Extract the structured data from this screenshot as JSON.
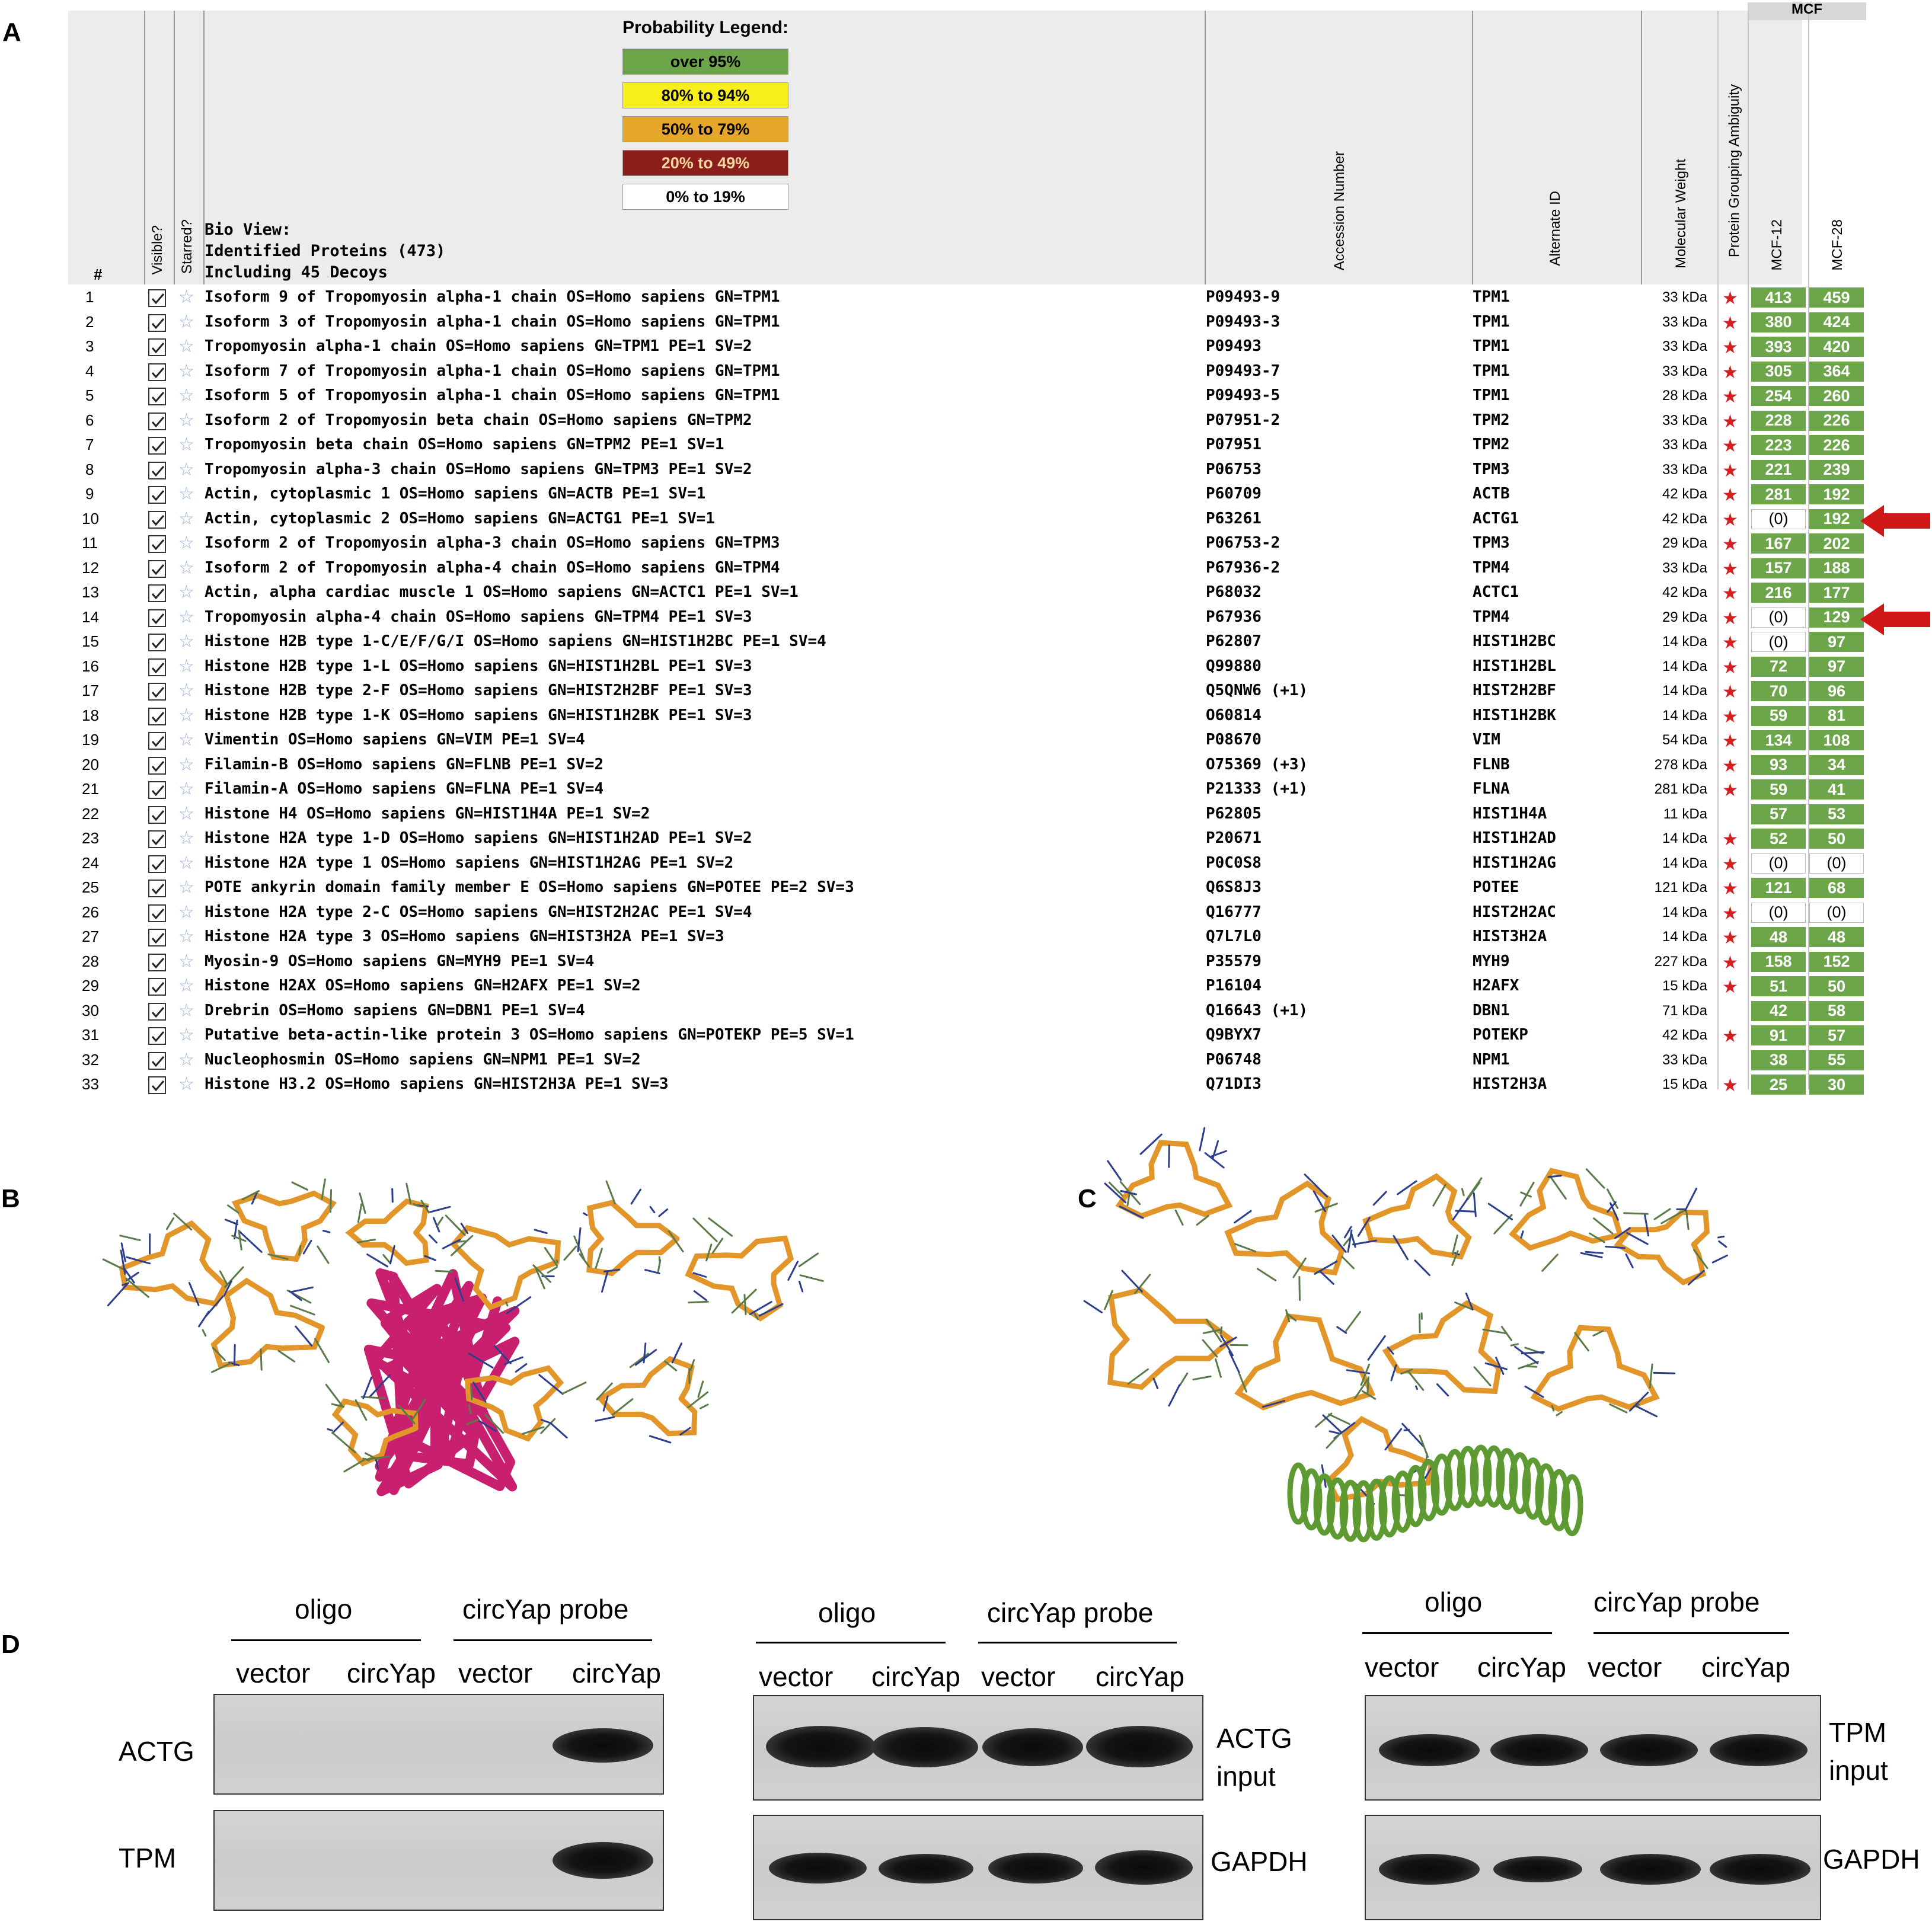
{
  "panels": {
    "a": "A",
    "b": "B",
    "c": "C",
    "d": "D"
  },
  "legend": {
    "title": "Probability Legend:",
    "items": [
      {
        "label": "over 95%",
        "color": "#6da64a",
        "text_color": "#000000"
      },
      {
        "label": "80% to 94%",
        "color": "#f7ee1b",
        "text_color": "#000000"
      },
      {
        "label": "50% to 79%",
        "color": "#e6a62a",
        "text_color": "#000000"
      },
      {
        "label": "20% to 49%",
        "color": "#8b1e1a",
        "text_color": "#f0d8a0"
      },
      {
        "label": "0% to 19%",
        "color": "#ffffff",
        "text_color": "#000000"
      }
    ]
  },
  "bio_view": {
    "line1": "Bio View:",
    "line2": "Identified Proteins (473)",
    "line3": "Including 45 Decoys"
  },
  "headers": {
    "num": "#",
    "visible": "Visible?",
    "starred": "Starred?",
    "accession": "Accession Number",
    "alternate": "Alternate ID",
    "mw": "Molecular Weight",
    "ambiguity": "Protein Grouping Ambiguity",
    "group": "MCF",
    "sample1": "MCF-12",
    "sample2": "MCF-28"
  },
  "rows": [
    {
      "n": "1",
      "desc": "Isoform 9 of Tropomyosin alpha-1 chain OS=Homo sapiens GN=TPM1",
      "acc": "P09493-9",
      "alt": "TPM1",
      "mw": "33 kDa",
      "amb": true,
      "c1": "413",
      "c2": "459"
    },
    {
      "n": "2",
      "desc": "Isoform 3 of Tropomyosin alpha-1 chain OS=Homo sapiens GN=TPM1",
      "acc": "P09493-3",
      "alt": "TPM1",
      "mw": "33 kDa",
      "amb": true,
      "c1": "380",
      "c2": "424"
    },
    {
      "n": "3",
      "desc": "Tropomyosin alpha-1 chain OS=Homo sapiens GN=TPM1 PE=1 SV=2",
      "acc": "P09493",
      "alt": "TPM1",
      "mw": "33 kDa",
      "amb": true,
      "c1": "393",
      "c2": "420"
    },
    {
      "n": "4",
      "desc": "Isoform 7 of Tropomyosin alpha-1 chain OS=Homo sapiens GN=TPM1",
      "acc": "P09493-7",
      "alt": "TPM1",
      "mw": "33 kDa",
      "amb": true,
      "c1": "305",
      "c2": "364"
    },
    {
      "n": "5",
      "desc": "Isoform 5 of Tropomyosin alpha-1 chain OS=Homo sapiens GN=TPM1",
      "acc": "P09493-5",
      "alt": "TPM1",
      "mw": "28 kDa",
      "amb": true,
      "c1": "254",
      "c2": "260"
    },
    {
      "n": "6",
      "desc": "Isoform 2 of Tropomyosin beta chain OS=Homo sapiens GN=TPM2",
      "acc": "P07951-2",
      "alt": "TPM2",
      "mw": "33 kDa",
      "amb": true,
      "c1": "228",
      "c2": "226"
    },
    {
      "n": "7",
      "desc": "Tropomyosin beta chain OS=Homo sapiens GN=TPM2 PE=1 SV=1",
      "acc": "P07951",
      "alt": "TPM2",
      "mw": "33 kDa",
      "amb": true,
      "c1": "223",
      "c2": "226"
    },
    {
      "n": "8",
      "desc": "Tropomyosin alpha-3 chain OS=Homo sapiens GN=TPM3 PE=1 SV=2",
      "acc": "P06753",
      "alt": "TPM3",
      "mw": "33 kDa",
      "amb": true,
      "c1": "221",
      "c2": "239"
    },
    {
      "n": "9",
      "desc": "Actin, cytoplasmic 1 OS=Homo sapiens GN=ACTB PE=1 SV=1",
      "acc": "P60709",
      "alt": "ACTB",
      "mw": "42 kDa",
      "amb": true,
      "c1": "281",
      "c2": "192"
    },
    {
      "n": "10",
      "desc": "Actin, cytoplasmic 2 OS=Homo sapiens GN=ACTG1 PE=1 SV=1",
      "acc": "P63261",
      "alt": "ACTG1",
      "mw": "42 kDa",
      "amb": true,
      "c1": "(0)",
      "c2": "192"
    },
    {
      "n": "11",
      "desc": "Isoform 2 of Tropomyosin alpha-3 chain OS=Homo sapiens GN=TPM3",
      "acc": "P06753-2",
      "alt": "TPM3",
      "mw": "29 kDa",
      "amb": true,
      "c1": "167",
      "c2": "202"
    },
    {
      "n": "12",
      "desc": "Isoform 2 of Tropomyosin alpha-4 chain OS=Homo sapiens GN=TPM4",
      "acc": "P67936-2",
      "alt": "TPM4",
      "mw": "33 kDa",
      "amb": true,
      "c1": "157",
      "c2": "188"
    },
    {
      "n": "13",
      "desc": "Actin, alpha cardiac muscle 1 OS=Homo sapiens GN=ACTC1 PE=1 SV=1",
      "acc": "P68032",
      "alt": "ACTC1",
      "mw": "42 kDa",
      "amb": true,
      "c1": "216",
      "c2": "177"
    },
    {
      "n": "14",
      "desc": "Tropomyosin alpha-4 chain OS=Homo sapiens GN=TPM4 PE=1 SV=3",
      "acc": "P67936",
      "alt": "TPM4",
      "mw": "29 kDa",
      "amb": true,
      "c1": "(0)",
      "c2": "129"
    },
    {
      "n": "15",
      "desc": "Histone H2B type 1-C/E/F/G/I OS=Homo sapiens GN=HIST1H2BC PE=1 SV=4",
      "acc": "P62807",
      "alt": "HIST1H2BC",
      "mw": "14 kDa",
      "amb": true,
      "c1": "(0)",
      "c2": "97"
    },
    {
      "n": "16",
      "desc": "Histone H2B type 1-L OS=Homo sapiens GN=HIST1H2BL PE=1 SV=3",
      "acc": "Q99880",
      "alt": "HIST1H2BL",
      "mw": "14 kDa",
      "amb": true,
      "c1": "72",
      "c2": "97"
    },
    {
      "n": "17",
      "desc": "Histone H2B type 2-F OS=Homo sapiens GN=HIST2H2BF PE=1 SV=3",
      "acc": "Q5QNW6 (+1)",
      "alt": "HIST2H2BF",
      "mw": "14 kDa",
      "amb": true,
      "c1": "70",
      "c2": "96"
    },
    {
      "n": "18",
      "desc": "Histone H2B type 1-K OS=Homo sapiens GN=HIST1H2BK PE=1 SV=3",
      "acc": "O60814",
      "alt": "HIST1H2BK",
      "mw": "14 kDa",
      "amb": true,
      "c1": "59",
      "c2": "81"
    },
    {
      "n": "19",
      "desc": "Vimentin OS=Homo sapiens GN=VIM PE=1 SV=4",
      "acc": "P08670",
      "alt": "VIM",
      "mw": "54 kDa",
      "amb": true,
      "c1": "134",
      "c2": "108"
    },
    {
      "n": "20",
      "desc": "Filamin-B OS=Homo sapiens GN=FLNB PE=1 SV=2",
      "acc": "O75369 (+3)",
      "alt": "FLNB",
      "mw": "278 kDa",
      "amb": true,
      "c1": "93",
      "c2": "34"
    },
    {
      "n": "21",
      "desc": "Filamin-A OS=Homo sapiens GN=FLNA PE=1 SV=4",
      "acc": "P21333 (+1)",
      "alt": "FLNA",
      "mw": "281 kDa",
      "amb": true,
      "c1": "59",
      "c2": "41"
    },
    {
      "n": "22",
      "desc": "Histone H4 OS=Homo sapiens GN=HIST1H4A PE=1 SV=2",
      "acc": "P62805",
      "alt": "HIST1H4A",
      "mw": "11 kDa",
      "amb": false,
      "c1": "57",
      "c2": "53"
    },
    {
      "n": "23",
      "desc": "Histone H2A type 1-D OS=Homo sapiens GN=HIST1H2AD PE=1 SV=2",
      "acc": "P20671",
      "alt": "HIST1H2AD",
      "mw": "14 kDa",
      "amb": true,
      "c1": "52",
      "c2": "50"
    },
    {
      "n": "24",
      "desc": "Histone H2A type 1 OS=Homo sapiens GN=HIST1H2AG PE=1 SV=2",
      "acc": "P0C0S8",
      "alt": "HIST1H2AG",
      "mw": "14 kDa",
      "amb": true,
      "c1": "(0)",
      "c2": "(0)"
    },
    {
      "n": "25",
      "desc": "POTE ankyrin domain family member E OS=Homo sapiens GN=POTEE PE=2 SV=3",
      "acc": "Q6S8J3",
      "alt": "POTEE",
      "mw": "121 kDa",
      "amb": true,
      "c1": "121",
      "c2": "68"
    },
    {
      "n": "26",
      "desc": "Histone H2A type 2-C OS=Homo sapiens GN=HIST2H2AC PE=1 SV=4",
      "acc": "Q16777",
      "alt": "HIST2H2AC",
      "mw": "14 kDa",
      "amb": true,
      "c1": "(0)",
      "c2": "(0)"
    },
    {
      "n": "27",
      "desc": "Histone H2A type 3 OS=Homo sapiens GN=HIST3H2A PE=1 SV=3",
      "acc": "Q7L7L0",
      "alt": "HIST3H2A",
      "mw": "14 kDa",
      "amb": true,
      "c1": "48",
      "c2": "48"
    },
    {
      "n": "28",
      "desc": "Myosin-9 OS=Homo sapiens GN=MYH9 PE=1 SV=4",
      "acc": "P35579",
      "alt": "MYH9",
      "mw": "227 kDa",
      "amb": true,
      "c1": "158",
      "c2": "152"
    },
    {
      "n": "29",
      "desc": "Histone H2AX OS=Homo sapiens GN=H2AFX PE=1 SV=2",
      "acc": "P16104",
      "alt": "H2AFX",
      "mw": "15 kDa",
      "amb": true,
      "c1": "51",
      "c2": "50"
    },
    {
      "n": "30",
      "desc": "Drebrin OS=Homo sapiens GN=DBN1 PE=1 SV=4",
      "acc": "Q16643 (+1)",
      "alt": "DBN1",
      "mw": "71 kDa",
      "amb": false,
      "c1": "42",
      "c2": "58"
    },
    {
      "n": "31",
      "desc": "Putative beta-actin-like protein 3 OS=Homo sapiens GN=POTEKP PE=5 SV=1",
      "acc": "Q9BYX7",
      "alt": "POTEKP",
      "mw": "42 kDa",
      "amb": true,
      "c1": "91",
      "c2": "57"
    },
    {
      "n": "32",
      "desc": "Nucleophosmin OS=Homo sapiens GN=NPM1 PE=1 SV=2",
      "acc": "P06748",
      "alt": "NPM1",
      "mw": "33 kDa",
      "amb": false,
      "c1": "38",
      "c2": "55"
    },
    {
      "n": "33",
      "desc": "Histone H3.2 OS=Homo sapiens GN=HIST2H3A PE=1 SV=3",
      "acc": "Q71DI3",
      "alt": "HIST2H3A",
      "mw": "15 kDa",
      "amb": true,
      "c1": "25",
      "c2": "30"
    }
  ],
  "arrow_rows": [
    "10",
    "14"
  ],
  "colors": {
    "green": "#6da64a",
    "red_arrow": "#d01818",
    "rna": "#e2962a",
    "protein_b": "#c8206e",
    "protein_c": "#5e9a32"
  },
  "blots": {
    "group_oligo": "oligo",
    "group_probe": "circYap probe",
    "lane_vector": "vector",
    "lane_circyap": "circYap",
    "b1_row1": "ACTG",
    "b1_row2": "TPM",
    "b2_row1_l1": "ACTG",
    "b2_row1_l2": "input",
    "b2_row2": "GAPDH",
    "b3_row1_l1": "TPM",
    "b3_row1_l2": "input",
    "b3_row2": "GAPDH"
  }
}
